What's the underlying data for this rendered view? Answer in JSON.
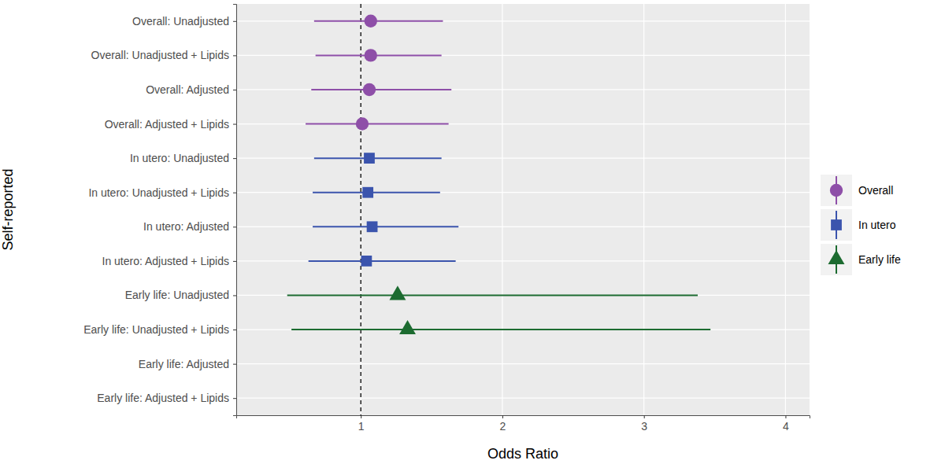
{
  "chart_data": {
    "type": "forest",
    "orientation": "horizontal",
    "x_label": "Odds Ratio",
    "y_label": "Self-reported",
    "categories": [
      "Overall: Unadjusted",
      "Overall: Unadjusted + Lipids",
      "Overall: Adjusted",
      "Overall: Adjusted + Lipids",
      "In utero: Unadjusted",
      "In utero: Unadjusted + Lipids",
      "In utero: Adjusted",
      "In utero: Adjusted + Lipids",
      "Early life: Unadjusted",
      "Early life: Unadjusted + Lipids",
      "Early life: Adjusted",
      "Early life: Adjusted + Lipids"
    ],
    "series": [
      {
        "name": "Overall",
        "color": "#8e4fa8",
        "marker": "circle",
        "values": [
          1.07,
          1.07,
          1.06,
          1.01,
          null,
          null,
          null,
          null,
          null,
          null,
          null,
          null
        ],
        "ci_low": [
          0.67,
          0.68,
          0.65,
          0.61,
          null,
          null,
          null,
          null,
          null,
          null,
          null,
          null
        ],
        "ci_high": [
          1.58,
          1.57,
          1.64,
          1.62,
          null,
          null,
          null,
          null,
          null,
          null,
          null,
          null
        ]
      },
      {
        "name": "In utero",
        "color": "#3b54ad",
        "marker": "square",
        "values": [
          null,
          null,
          null,
          null,
          1.06,
          1.05,
          1.08,
          1.04,
          null,
          null,
          null,
          null
        ],
        "ci_low": [
          null,
          null,
          null,
          null,
          0.67,
          0.66,
          0.66,
          0.63,
          null,
          null,
          null,
          null
        ],
        "ci_high": [
          null,
          null,
          null,
          null,
          1.57,
          1.56,
          1.69,
          1.67,
          null,
          null,
          null,
          null
        ]
      },
      {
        "name": "Early life",
        "color": "#1c6b30",
        "marker": "triangle",
        "values": [
          null,
          null,
          null,
          null,
          null,
          null,
          null,
          null,
          1.26,
          1.33,
          null,
          null
        ],
        "ci_low": [
          null,
          null,
          null,
          null,
          null,
          null,
          null,
          null,
          0.48,
          0.51,
          null,
          null
        ],
        "ci_high": [
          null,
          null,
          null,
          null,
          null,
          null,
          null,
          null,
          3.38,
          3.47,
          null,
          null
        ]
      }
    ],
    "reference": 1,
    "xlim": [
      0.12,
      4.17
    ],
    "xticks": [
      1,
      2,
      3,
      4
    ],
    "grid": true,
    "legend": "right"
  }
}
